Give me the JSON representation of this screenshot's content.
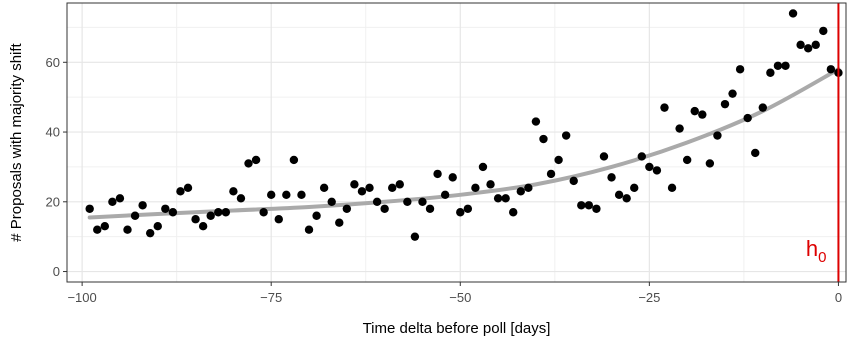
{
  "chart_data": {
    "type": "scatter",
    "xlabel": "Time delta before poll [days]",
    "ylabel": "# Proposals with majority shift",
    "xlim": [
      -102,
      1
    ],
    "ylim": [
      -3,
      77
    ],
    "x_ticks": [
      -100,
      -75,
      -50,
      -25,
      0
    ],
    "x_tick_labels": [
      "−100",
      "−75",
      "−50",
      "−25",
      "0"
    ],
    "y_ticks": [
      0,
      20,
      40,
      60
    ],
    "y_tick_labels": [
      "0",
      "20",
      "40",
      "60"
    ],
    "grid": true,
    "points": [
      [
        -99,
        18
      ],
      [
        -98,
        12
      ],
      [
        -97,
        13
      ],
      [
        -96,
        20
      ],
      [
        -95,
        21
      ],
      [
        -94,
        12
      ],
      [
        -93,
        16
      ],
      [
        -92,
        19
      ],
      [
        -91,
        11
      ],
      [
        -90,
        13
      ],
      [
        -89,
        18
      ],
      [
        -88,
        17
      ],
      [
        -87,
        23
      ],
      [
        -86,
        24
      ],
      [
        -85,
        15
      ],
      [
        -84,
        13
      ],
      [
        -83,
        16
      ],
      [
        -82,
        17
      ],
      [
        -81,
        17
      ],
      [
        -80,
        23
      ],
      [
        -79,
        21
      ],
      [
        -78,
        31
      ],
      [
        -77,
        32
      ],
      [
        -76,
        17
      ],
      [
        -75,
        22
      ],
      [
        -74,
        15
      ],
      [
        -73,
        22
      ],
      [
        -72,
        32
      ],
      [
        -71,
        22
      ],
      [
        -70,
        12
      ],
      [
        -69,
        16
      ],
      [
        -68,
        24
      ],
      [
        -67,
        20
      ],
      [
        -66,
        14
      ],
      [
        -65,
        18
      ],
      [
        -64,
        25
      ],
      [
        -63,
        23
      ],
      [
        -62,
        24
      ],
      [
        -61,
        20
      ],
      [
        -60,
        18
      ],
      [
        -59,
        24
      ],
      [
        -58,
        25
      ],
      [
        -57,
        20
      ],
      [
        -56,
        10
      ],
      [
        -55,
        20
      ],
      [
        -54,
        18
      ],
      [
        -53,
        28
      ],
      [
        -52,
        22
      ],
      [
        -51,
        27
      ],
      [
        -50,
        17
      ],
      [
        -49,
        18
      ],
      [
        -48,
        24
      ],
      [
        -47,
        30
      ],
      [
        -46,
        25
      ],
      [
        -45,
        21
      ],
      [
        -44,
        21
      ],
      [
        -43,
        17
      ],
      [
        -42,
        23
      ],
      [
        -41,
        24
      ],
      [
        -40,
        43
      ],
      [
        -39,
        38
      ],
      [
        -38,
        28
      ],
      [
        -37,
        32
      ],
      [
        -36,
        39
      ],
      [
        -35,
        26
      ],
      [
        -34,
        19
      ],
      [
        -33,
        19
      ],
      [
        -32,
        18
      ],
      [
        -31,
        33
      ],
      [
        -30,
        27
      ],
      [
        -29,
        22
      ],
      [
        -28,
        21
      ],
      [
        -27,
        24
      ],
      [
        -26,
        33
      ],
      [
        -25,
        30
      ],
      [
        -24,
        29
      ],
      [
        -23,
        47
      ],
      [
        -22,
        24
      ],
      [
        -21,
        41
      ],
      [
        -20,
        32
      ],
      [
        -19,
        46
      ],
      [
        -18,
        45
      ],
      [
        -17,
        31
      ],
      [
        -16,
        39
      ],
      [
        -15,
        48
      ],
      [
        -14,
        51
      ],
      [
        -13,
        58
      ],
      [
        -12,
        44
      ],
      [
        -11,
        34
      ],
      [
        -10,
        47
      ],
      [
        -9,
        57
      ],
      [
        -8,
        59
      ],
      [
        -7,
        59
      ],
      [
        -6,
        74
      ],
      [
        -5,
        65
      ],
      [
        -4,
        64
      ],
      [
        -3,
        65
      ],
      [
        -2,
        69
      ],
      [
        -1,
        58
      ],
      [
        0,
        57
      ]
    ],
    "trend": {
      "color": "#aaaaaa",
      "x": [
        -99,
        -90,
        -80,
        -70,
        -60,
        -50,
        -40,
        -30,
        -20,
        -10,
        0
      ],
      "y": [
        15.5,
        16.5,
        17.5,
        18.5,
        20,
        22,
        25,
        30,
        37,
        46,
        58
      ]
    },
    "reference_line": {
      "x": 0,
      "label": "h",
      "label_subscript": "0",
      "color": "#dd0000"
    },
    "point_color": "#000000"
  }
}
